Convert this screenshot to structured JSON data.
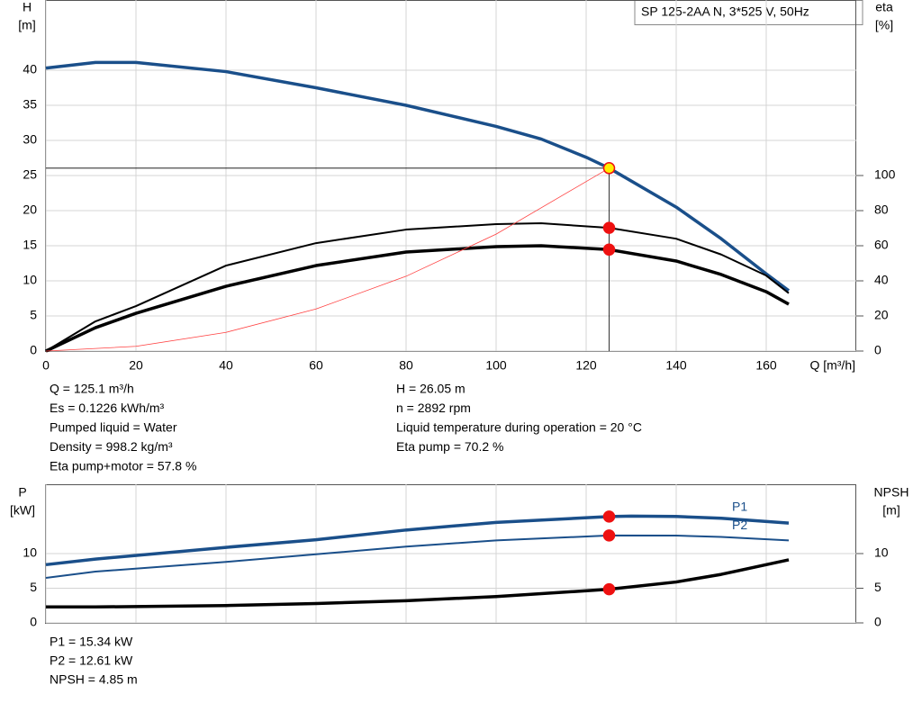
{
  "chart_data": [
    {
      "type": "line",
      "title": "SP 125-2AA N, 3*525 V, 50Hz",
      "ylabel": [
        "H",
        "[m]"
      ],
      "y2label": [
        "eta",
        "[%]"
      ],
      "xlabel": "Q [m³/h]",
      "xlim": [
        0,
        180
      ],
      "xticks": [
        0,
        20,
        40,
        60,
        80,
        100,
        120,
        140,
        160
      ],
      "ylim": [
        0,
        50
      ],
      "yticks": [
        0,
        5,
        10,
        15,
        20,
        25,
        30,
        35,
        40
      ],
      "y2lim": [
        0,
        200
      ],
      "y2ticks": [
        0,
        20,
        40,
        60,
        80,
        100
      ],
      "grid": true,
      "duty_x": 125.1,
      "series": [
        {
          "color": "#1a4f8a",
          "style": "thick",
          "marker_color": "#ffee00",
          "x": [
            0,
            11,
            20,
            40,
            60,
            80,
            100,
            110,
            120,
            125.1,
            140,
            150,
            160,
            165
          ],
          "values": [
            40.3,
            41.1,
            41.1,
            39.8,
            37.5,
            35.0,
            32.0,
            30.2,
            27.6,
            26.05,
            20.5,
            16.0,
            11.0,
            8.6
          ]
        },
        {
          "color": "#000000",
          "style": "thin",
          "axis": "y2",
          "marker_color": "#ee1111",
          "x": [
            0,
            11,
            20,
            40,
            60,
            80,
            100,
            110,
            125.1,
            140,
            150,
            160,
            165
          ],
          "values": [
            0,
            16.9,
            25.6,
            48.7,
            61.5,
            69.2,
            72.3,
            72.8,
            70.2,
            64,
            55,
            43,
            33
          ]
        },
        {
          "color": "#000000",
          "style": "thick",
          "axis": "y2",
          "marker_color": "#ee1111",
          "x": [
            0,
            11,
            20,
            40,
            60,
            80,
            100,
            110,
            125.1,
            140,
            150,
            160,
            165
          ],
          "values": [
            0,
            13.3,
            21.5,
            36.9,
            48.7,
            56.4,
            59.5,
            60,
            57.8,
            51.3,
            43.6,
            33.8,
            26.7
          ]
        },
        {
          "color": "#ff4040",
          "style": "hair",
          "x": [
            0,
            20,
            40,
            60,
            80,
            100,
            125.1
          ],
          "values": [
            0,
            0.67,
            2.66,
            5.99,
            10.65,
            16.65,
            26.05
          ]
        }
      ],
      "annotations": [
        [
          "Q = 125.1 m³/h",
          "Es = 0.1226 kWh/m³",
          "Pumped liquid = Water",
          "Density = 998.2 kg/m³",
          "Eta pump+motor = 57.8 %"
        ],
        [
          "H = 26.05 m",
          "n = 2892 rpm",
          "Liquid temperature during operation = 20 °C",
          "Eta pump = 70.2 %"
        ]
      ]
    },
    {
      "type": "line",
      "ylabel": [
        "P",
        "[kW]"
      ],
      "y2label": [
        "NPSH",
        "[m]"
      ],
      "xlim": [
        0,
        180
      ],
      "xticks": [
        0,
        20,
        40,
        60,
        80,
        100,
        120,
        140,
        160
      ],
      "xtick_labels": false,
      "ylim": [
        0,
        20
      ],
      "yticks": [
        0,
        5,
        10
      ],
      "y2lim": [
        0,
        20
      ],
      "y2ticks": [
        0,
        5,
        10
      ],
      "grid": true,
      "duty_x": 125.1,
      "series": [
        {
          "name": "P1",
          "color": "#1a4f8a",
          "style": "thick",
          "marker_color": "#ee1111",
          "x": [
            0,
            11,
            40,
            60,
            80,
            100,
            125.1,
            130,
            140,
            150,
            165
          ],
          "values": [
            8.4,
            9.2,
            10.9,
            12.0,
            13.4,
            14.5,
            15.34,
            15.4,
            15.35,
            15.1,
            14.4
          ]
        },
        {
          "name": "P2",
          "color": "#1a4f8a",
          "style": "thin",
          "marker_color": "#ee1111",
          "x": [
            0,
            11,
            40,
            60,
            80,
            100,
            125.1,
            140,
            150,
            165
          ],
          "values": [
            6.5,
            7.4,
            8.8,
            9.9,
            11.0,
            11.9,
            12.61,
            12.6,
            12.4,
            11.9
          ]
        },
        {
          "color": "#000000",
          "style": "thick",
          "axis": "y2",
          "marker_color": "#ee1111",
          "x": [
            0,
            11,
            40,
            60,
            80,
            100,
            125.1,
            140,
            150,
            160,
            165
          ],
          "values": [
            2.3,
            2.3,
            2.5,
            2.8,
            3.2,
            3.8,
            4.85,
            5.9,
            7.0,
            8.4,
            9.1
          ]
        }
      ],
      "annotations": [
        [
          "P1 = 15.34 kW",
          "P2 = 12.61 kW",
          "NPSH = 4.85 m"
        ]
      ]
    }
  ]
}
